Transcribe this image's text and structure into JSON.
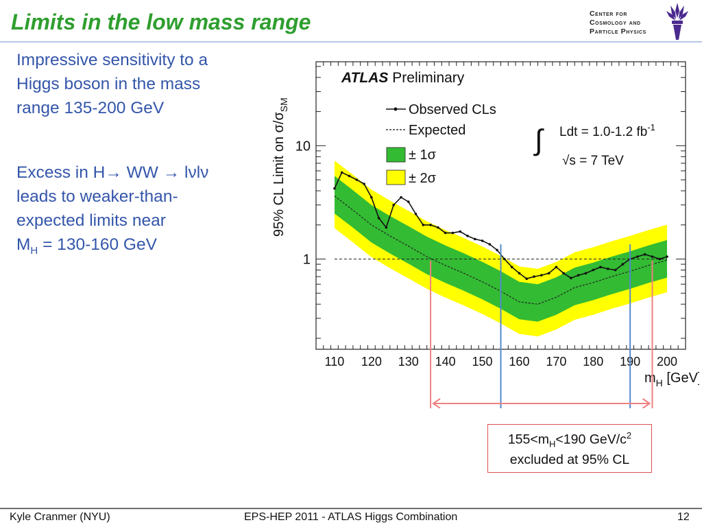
{
  "slide": {
    "title": "Limits in the low mass range",
    "logo_lines": [
      "Center for",
      "Cosmology and",
      "Particle Physics"
    ],
    "bullet1_lines": [
      "Impressive sensitivity to a",
      "Higgs boson in the mass",
      "range 135-200 GeV"
    ],
    "bullet2_lines": [
      "Excess in H→ WW → lνlν",
      "leads to weaker-than-",
      "expected limits near",
      "M",
      "H",
      " = 130-160 GeV"
    ],
    "footer_left": "Kyle Cranmer (NYU)",
    "footer_center": "EPS-HEP 2011 - ATLAS Higgs Combination",
    "footer_right": "12"
  },
  "annotations": {
    "exclusion_line1": "155<m",
    "exclusion_line1_sub": "H",
    "exclusion_line1_rest": "<190 GeV/c",
    "exclusion_line1_sup": "2",
    "exclusion_line2": "excluded at 95% CL",
    "red_range": [
      136,
      196
    ],
    "blue_range": [
      155,
      190
    ]
  },
  "chart_data": {
    "type": "line",
    "title": "ATLAS Preliminary",
    "title_bold": "ATLAS",
    "title_rest": " Preliminary",
    "xlabel": "m",
    "xlabel_sub": "H",
    "xlabel_rest": " [GeV]",
    "ylabel": "95% CL Limit on σ/σ",
    "ylabel_sub": "SM",
    "xlim": [
      105,
      205
    ],
    "ylim": [
      0.16,
      55
    ],
    "yscale": "log",
    "x_ticks": [
      110,
      120,
      130,
      140,
      150,
      160,
      170,
      180,
      190,
      200
    ],
    "y_ticks": [
      1,
      10
    ],
    "y_tick_labels": [
      "1",
      "10"
    ],
    "luminosity_label": "Ldt = 1.0-1.2 fb",
    "luminosity_sup": "-1",
    "energy_label": "√s = 7 TeV",
    "legend": [
      "Observed CLs",
      "Expected",
      "± 1σ",
      "± 2σ"
    ],
    "colors": {
      "observed": "#111111",
      "expected": "#222222",
      "band1": "#33bb33",
      "band2": "#ffff00",
      "red_marker": "#f08080",
      "blue_marker": "#5588cc"
    },
    "reference_line": 1,
    "series": [
      {
        "name": "Observed CLs",
        "x": [
          110,
          112,
          114,
          116,
          118,
          120,
          122,
          124,
          126,
          128,
          130,
          132,
          134,
          136,
          138,
          140,
          142,
          144,
          146,
          148,
          150,
          152,
          154,
          156,
          158,
          160,
          162,
          164,
          166,
          168,
          170,
          172,
          174,
          176,
          178,
          180,
          182,
          184,
          186,
          188,
          190,
          192,
          194,
          196,
          198,
          200
        ],
        "values": [
          4.2,
          5.8,
          5.4,
          5.0,
          4.6,
          3.5,
          2.3,
          1.9,
          3.0,
          3.5,
          3.2,
          2.5,
          2.0,
          2.0,
          1.9,
          1.7,
          1.7,
          1.75,
          1.6,
          1.5,
          1.45,
          1.35,
          1.2,
          1.0,
          0.85,
          0.75,
          0.67,
          0.7,
          0.72,
          0.75,
          0.85,
          0.75,
          0.68,
          0.72,
          0.75,
          0.8,
          0.85,
          0.82,
          0.8,
          0.9,
          1.0,
          1.05,
          1.1,
          1.05,
          1.0,
          1.05
        ]
      },
      {
        "name": "Expected",
        "x": [
          110,
          115,
          120,
          125,
          130,
          135,
          140,
          145,
          150,
          155,
          160,
          165,
          170,
          175,
          180,
          185,
          190,
          195,
          200
        ],
        "values": [
          3.6,
          2.7,
          2.0,
          1.6,
          1.3,
          1.05,
          0.88,
          0.75,
          0.63,
          0.52,
          0.42,
          0.4,
          0.46,
          0.56,
          0.62,
          0.7,
          0.78,
          0.88,
          0.98
        ]
      }
    ]
  }
}
